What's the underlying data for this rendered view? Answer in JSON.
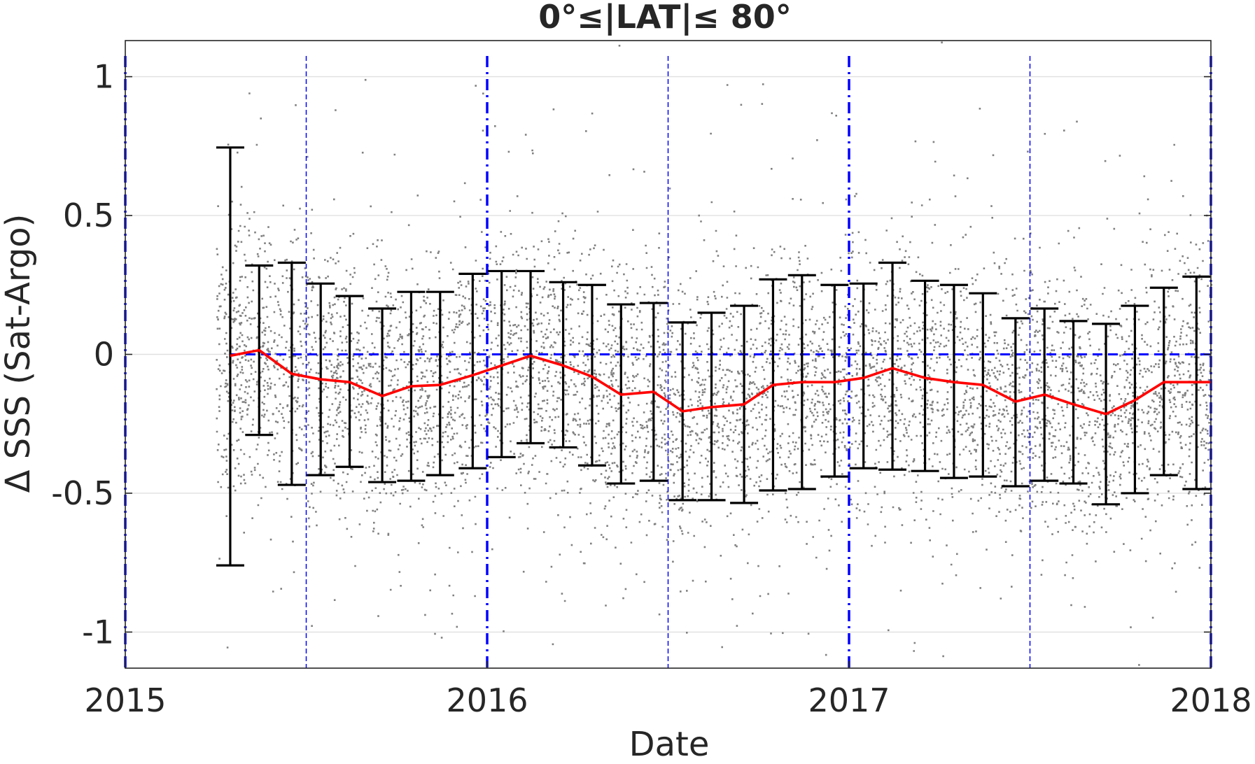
{
  "chart_data": {
    "type": "scatter",
    "title": "0°≤|LAT|≤ 80°",
    "xlabel": "Date",
    "ylabel": "Δ SSS (Sat-Argo)",
    "xlim": [
      2015.0,
      2018.0
    ],
    "ylim": [
      -1.13,
      1.13
    ],
    "xticks": [
      2015,
      2016,
      2017,
      2018
    ],
    "xtick_labels": [
      "2015",
      "2016",
      "2017",
      "2018"
    ],
    "yticks": [
      1,
      0.5,
      0,
      -0.5,
      -1
    ],
    "ytick_labels": [
      "1",
      "0.5",
      "0",
      "-0.5",
      "-1"
    ],
    "grid": "horizontal",
    "colors": {
      "scatter": "#808080",
      "mean_line": "#ff0000",
      "errorbar": "#000000",
      "reference": "#0000ff",
      "grid": "#e0e0e0"
    },
    "scatter_cloud": {
      "x_range": [
        2015.25,
        2018.0
      ],
      "core_spread_std": 0.22,
      "description_series": "individual collocations"
    },
    "monthly_stats": {
      "x": [
        2015.29,
        2015.37,
        2015.46,
        2015.54,
        2015.62,
        2015.71,
        2015.79,
        2015.87,
        2015.96,
        2016.04,
        2016.12,
        2016.21,
        2016.29,
        2016.37,
        2016.46,
        2016.54,
        2016.62,
        2016.71,
        2016.79,
        2016.87,
        2016.96,
        2017.04,
        2017.12,
        2017.21,
        2017.29,
        2017.37,
        2017.46,
        2017.54,
        2017.62,
        2017.71,
        2017.79,
        2017.87,
        2017.96
      ],
      "mean": [
        -0.005,
        0.015,
        -0.07,
        -0.09,
        -0.1,
        -0.15,
        -0.115,
        -0.11,
        -0.075,
        -0.04,
        -0.005,
        -0.04,
        -0.08,
        -0.145,
        -0.135,
        -0.205,
        -0.19,
        -0.18,
        -0.11,
        -0.1,
        -0.1,
        -0.085,
        -0.05,
        -0.085,
        -0.1,
        -0.11,
        -0.17,
        -0.145,
        -0.18,
        -0.215,
        -0.165,
        -0.1,
        -0.1
      ],
      "upper": [
        0.745,
        0.32,
        0.33,
        0.255,
        0.21,
        0.165,
        0.225,
        0.225,
        0.29,
        0.3,
        0.3,
        0.26,
        0.25,
        0.18,
        0.185,
        0.115,
        0.15,
        0.175,
        0.27,
        0.285,
        0.25,
        0.255,
        0.33,
        0.265,
        0.25,
        0.22,
        0.13,
        0.165,
        0.12,
        0.11,
        0.175,
        0.24,
        0.28
      ],
      "lower": [
        -0.76,
        -0.29,
        -0.47,
        -0.435,
        -0.405,
        -0.46,
        -0.455,
        -0.435,
        -0.41,
        -0.37,
        -0.32,
        -0.335,
        -0.4,
        -0.465,
        -0.455,
        -0.525,
        -0.525,
        -0.535,
        -0.49,
        -0.485,
        -0.44,
        -0.41,
        -0.415,
        -0.42,
        -0.445,
        -0.44,
        -0.475,
        -0.455,
        -0.465,
        -0.54,
        -0.5,
        -0.435,
        -0.485
      ]
    },
    "reference_lines": {
      "y_zero": 0,
      "year_x": [
        2015.0,
        2016.0,
        2017.0,
        2018.0
      ],
      "midyear_x": [
        2015.5,
        2016.5,
        2017.5
      ]
    }
  }
}
